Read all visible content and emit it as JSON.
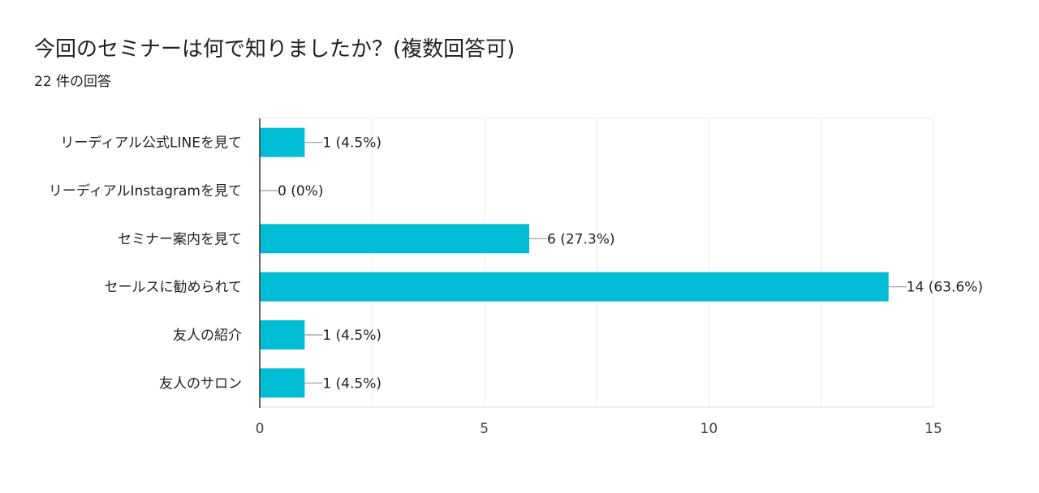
{
  "header": {
    "question": "今回のセミナーは何で知りましたか？(複数回答可)",
    "response_count": "22 件の回答"
  },
  "colors": {
    "bar": "#00bcd4",
    "grid": "#eeeeee",
    "axis": "#333333",
    "text": "#202124"
  },
  "chart_data": {
    "type": "bar",
    "orientation": "horizontal",
    "categories": [
      "リーディアル公式LINEを見て",
      "リーディアルInstagramを見て",
      "セミナー案内を見て",
      "セールスに勧められて",
      "友人の紹介",
      "友人のサロン"
    ],
    "values": [
      1,
      0,
      6,
      14,
      1,
      1
    ],
    "data_labels": [
      "1 (4.5%)",
      "0 (0%)",
      "6 (27.3%)",
      "14 (63.6%)",
      "1 (4.5%)",
      "1 (4.5%)"
    ],
    "xlim": [
      0,
      15
    ],
    "xticks": [
      0,
      5,
      10,
      15
    ],
    "grid": true,
    "legend": "none"
  }
}
